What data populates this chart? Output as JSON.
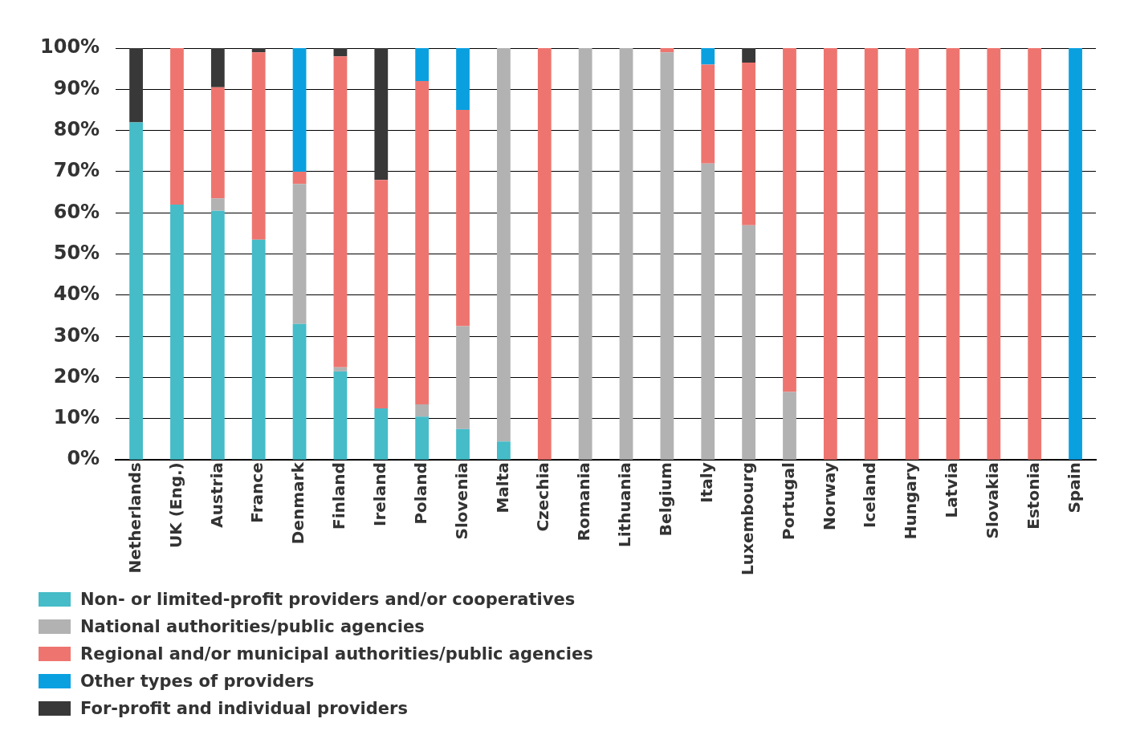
{
  "chart_data": {
    "type": "bar",
    "stacked": true,
    "grid": "y",
    "legend": "bottom left",
    "categories": [
      "Netherlands",
      "UK (Eng.)",
      "Austria",
      "France",
      "Denmark",
      "Finland",
      "Ireland",
      "Poland",
      "Slovenia",
      "Malta",
      "Czechia",
      "Romania",
      "Lithuania",
      "Belgium",
      "Italy",
      "Luxembourg",
      "Portugal",
      "Norway",
      "Iceland",
      "Hungary",
      "Latvia",
      "Slovakia",
      "Estonia",
      "Spain"
    ],
    "ylim": [
      0,
      100
    ],
    "yticks": [
      {
        "value": 0,
        "label": "0%"
      },
      {
        "value": 10,
        "label": "10%"
      },
      {
        "value": 20,
        "label": "20%"
      },
      {
        "value": 30,
        "label": "30%"
      },
      {
        "value": 40,
        "label": "40%"
      },
      {
        "value": 50,
        "label": "50%"
      },
      {
        "value": 60,
        "label": "60%"
      },
      {
        "value": 70,
        "label": "70%"
      },
      {
        "value": 80,
        "label": "80%"
      },
      {
        "value": 90,
        "label": "90%"
      },
      {
        "value": 100,
        "label": "100%"
      }
    ],
    "series": [
      {
        "name": "Non- or limited-profit providers and/or cooperatives",
        "color": "#45bcc8",
        "values": [
          82,
          62,
          60.5,
          53.5,
          33,
          21.5,
          12.5,
          10.5,
          7.5,
          4.5,
          null,
          null,
          null,
          null,
          null,
          null,
          null,
          null,
          null,
          null,
          null,
          null,
          null,
          null
        ]
      },
      {
        "name": "National authorities/public agencies",
        "color": "#b2b2b2",
        "values": [
          null,
          null,
          3,
          null,
          34,
          1,
          null,
          3,
          25,
          95.5,
          null,
          100,
          100,
          99,
          72,
          57,
          16.5,
          null,
          null,
          null,
          null,
          null,
          null,
          null
        ]
      },
      {
        "name": "Regional and/or municipal authorities/public agencies",
        "color": "#ee756f",
        "values": [
          null,
          38,
          27,
          45.5,
          3,
          75.5,
          55.5,
          78.5,
          52.5,
          null,
          100,
          null,
          null,
          1,
          24,
          39.5,
          83.5,
          100,
          100,
          100,
          100,
          100,
          100,
          null
        ]
      },
      {
        "name": "Other types of providers",
        "color": "#0aa0e0",
        "values": [
          null,
          null,
          null,
          null,
          30,
          null,
          null,
          8,
          15,
          null,
          null,
          null,
          null,
          null,
          4,
          null,
          null,
          null,
          null,
          null,
          null,
          null,
          null,
          100
        ]
      },
      {
        "name": "For-profit and individual providers",
        "color": "#383838",
        "values": [
          18,
          null,
          9.5,
          1,
          null,
          2,
          32,
          null,
          null,
          null,
          null,
          null,
          null,
          null,
          null,
          3.5,
          null,
          null,
          null,
          null,
          null,
          null,
          null,
          null
        ]
      }
    ]
  }
}
